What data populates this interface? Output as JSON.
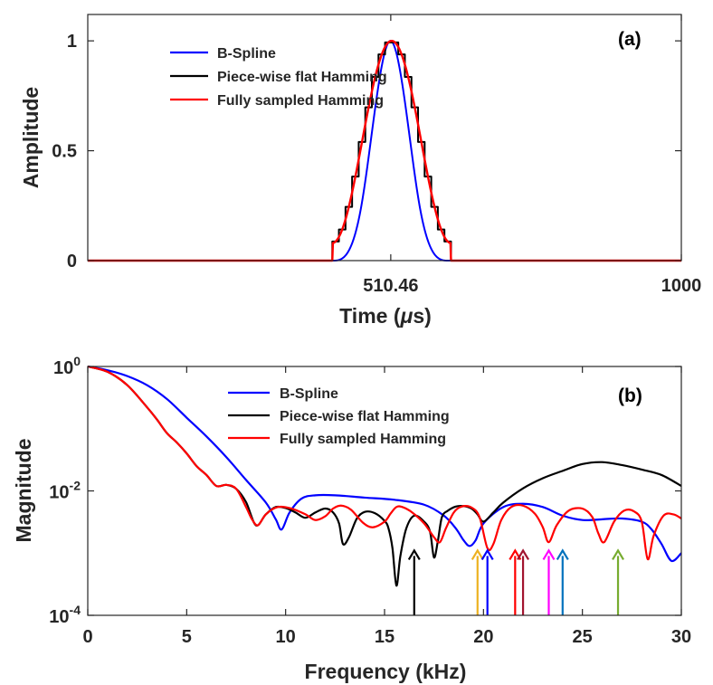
{
  "chart_data": [
    {
      "type": "line",
      "panel_label": "(a)",
      "xlabel_main": "Time (",
      "xlabel_unit": "μ",
      "xlabel_tail": "s)",
      "ylabel": "Amplitude",
      "x_scale": "linear",
      "y_scale": "linear",
      "xlim": [
        0,
        1000
      ],
      "ylim": [
        0,
        1.12
      ],
      "x_ticks": [
        510.46,
        1000
      ],
      "x_tick_labels": [
        "510.46",
        "1000"
      ],
      "y_ticks": [
        0,
        0.5,
        1
      ],
      "y_tick_labels": [
        "0",
        "0.5",
        "1"
      ],
      "legend": "top-left",
      "grid": false,
      "series": [
        {
          "name": "B-Spline",
          "color": "#0000ff",
          "kind": "bspline",
          "start": 412,
          "end": 608
        },
        {
          "name": "Piece-wise flat Hamming",
          "color": "#000000",
          "kind": "step-hamming",
          "start": 412,
          "end": 612,
          "steps": 18
        },
        {
          "name": "Fully sampled Hamming",
          "color": "#ff0000",
          "kind": "hamming",
          "start": 412,
          "end": 612
        }
      ]
    },
    {
      "type": "line",
      "panel_label": "(b)",
      "xlabel": "Frequency (kHz)",
      "ylabel": "Magnitude",
      "x_scale": "linear",
      "y_scale": "log",
      "xlim": [
        0,
        30
      ],
      "ylim": [
        0.0001,
        1
      ],
      "x_ticks": [
        0,
        5,
        10,
        15,
        20,
        25,
        30
      ],
      "x_tick_labels": [
        "0",
        "5",
        "10",
        "15",
        "20",
        "25",
        "30"
      ],
      "y_ticks": [
        1,
        0.01,
        0.0001
      ],
      "y_tick_base": [
        "10",
        "10",
        "10"
      ],
      "y_tick_exp": [
        "0",
        "-2",
        "-4"
      ],
      "legend": "top-center",
      "grid": false,
      "series": [
        {
          "name": "B-Spline",
          "color": "#0000ff",
          "x": [
            0,
            1,
            2,
            3,
            4,
            5,
            6,
            7,
            8,
            9,
            9.5,
            9.8,
            10.2,
            10.8,
            11.5,
            12.5,
            14,
            15.5,
            17,
            18,
            18.6,
            19,
            19.3,
            19.6,
            20,
            21,
            22,
            23,
            24,
            25,
            26,
            27,
            28,
            28.5,
            29,
            29.5,
            30
          ],
          "y": [
            1,
            0.87,
            0.7,
            0.5,
            0.3,
            0.15,
            0.075,
            0.035,
            0.015,
            0.0065,
            0.0035,
            0.0024,
            0.0045,
            0.0075,
            0.0085,
            0.0085,
            0.0078,
            0.0072,
            0.006,
            0.004,
            0.0025,
            0.0016,
            0.0013,
            0.0016,
            0.003,
            0.0055,
            0.0062,
            0.0055,
            0.004,
            0.0034,
            0.0035,
            0.0036,
            0.0032,
            0.0024,
            0.0014,
            0.00075,
            0.001
          ]
        },
        {
          "name": "Piece-wise flat Hamming",
          "color": "#000000",
          "x": [
            0,
            1,
            2,
            3,
            3.5,
            4,
            4.5,
            5,
            5.5,
            6,
            6.5,
            7,
            7.5,
            8,
            8.5,
            9,
            9.5,
            10,
            10.5,
            11,
            11.5,
            12,
            12.4,
            12.7,
            12.9,
            13.2,
            13.6,
            14,
            14.5,
            15,
            15.2,
            15.4,
            15.6,
            15.8,
            16.1,
            16.5,
            17,
            17.3,
            17.5,
            17.7,
            17.9,
            18.2,
            18.6,
            19,
            19.4,
            19.7,
            20,
            20.5,
            21,
            22,
            23,
            24,
            25,
            26,
            27,
            28,
            29,
            30
          ],
          "y": [
            1,
            0.82,
            0.5,
            0.22,
            0.14,
            0.085,
            0.06,
            0.04,
            0.025,
            0.018,
            0.012,
            0.0125,
            0.0108,
            0.0066,
            0.0028,
            0.0042,
            0.0055,
            0.0053,
            0.0045,
            0.0037,
            0.0045,
            0.0052,
            0.0045,
            0.003,
            0.0014,
            0.0018,
            0.0036,
            0.0046,
            0.0044,
            0.0033,
            0.0025,
            0.0012,
            0.0003,
            0.0009,
            0.0025,
            0.004,
            0.0032,
            0.0022,
            0.00085,
            0.0016,
            0.0038,
            0.0048,
            0.0056,
            0.0057,
            0.0052,
            0.0042,
            0.0032,
            0.0045,
            0.0065,
            0.011,
            0.016,
            0.021,
            0.027,
            0.029,
            0.026,
            0.022,
            0.018,
            0.012
          ]
        },
        {
          "name": "Fully sampled Hamming",
          "color": "#ff0000",
          "x": [
            0,
            1,
            2,
            3,
            3.5,
            4,
            4.5,
            5,
            5.5,
            6,
            6.5,
            7,
            7.5,
            8,
            8.3,
            8.6,
            9,
            9.6,
            10.3,
            11,
            11.5,
            12,
            12.4,
            12.8,
            13.3,
            13.9,
            14.4,
            15,
            15.3,
            15.6,
            15.9,
            16.4,
            17,
            17.5,
            17.8,
            18.1,
            18.5,
            18.9,
            19.4,
            19.8,
            20.2,
            20.5,
            20.9,
            21.4,
            22,
            22.6,
            23,
            23.3,
            23.7,
            24.3,
            25,
            25.5,
            25.8,
            26.1,
            26.6,
            27.1,
            27.6,
            28,
            28.3,
            28.6,
            29.1,
            29.6,
            30
          ],
          "y": [
            1,
            0.82,
            0.5,
            0.22,
            0.14,
            0.085,
            0.06,
            0.04,
            0.025,
            0.018,
            0.012,
            0.0125,
            0.0108,
            0.0055,
            0.0035,
            0.0028,
            0.0042,
            0.0055,
            0.0052,
            0.0042,
            0.0034,
            0.0039,
            0.0052,
            0.0058,
            0.005,
            0.0031,
            0.0026,
            0.0032,
            0.0043,
            0.0055,
            0.0055,
            0.0045,
            0.003,
            0.0018,
            0.0015,
            0.0025,
            0.0045,
            0.0056,
            0.0054,
            0.0038,
            0.0012,
            0.0014,
            0.0034,
            0.0055,
            0.0058,
            0.0043,
            0.0026,
            0.0015,
            0.0028,
            0.0048,
            0.0052,
            0.0038,
            0.0021,
            0.0015,
            0.0032,
            0.0048,
            0.0047,
            0.0032,
            0.0008,
            0.0019,
            0.004,
            0.0042,
            0.0036
          ]
        }
      ],
      "arrows": [
        {
          "x": 16.5,
          "color": "#000000"
        },
        {
          "x": 19.7,
          "color": "#edb120"
        },
        {
          "x": 20.2,
          "color": "#0000ff"
        },
        {
          "x": 21.6,
          "color": "#ff0000"
        },
        {
          "x": 22.0,
          "color": "#a2142f"
        },
        {
          "x": 23.3,
          "color": "#ff00ff"
        },
        {
          "x": 24.0,
          "color": "#0072bd"
        },
        {
          "x": 26.8,
          "color": "#77ac30"
        }
      ]
    }
  ]
}
